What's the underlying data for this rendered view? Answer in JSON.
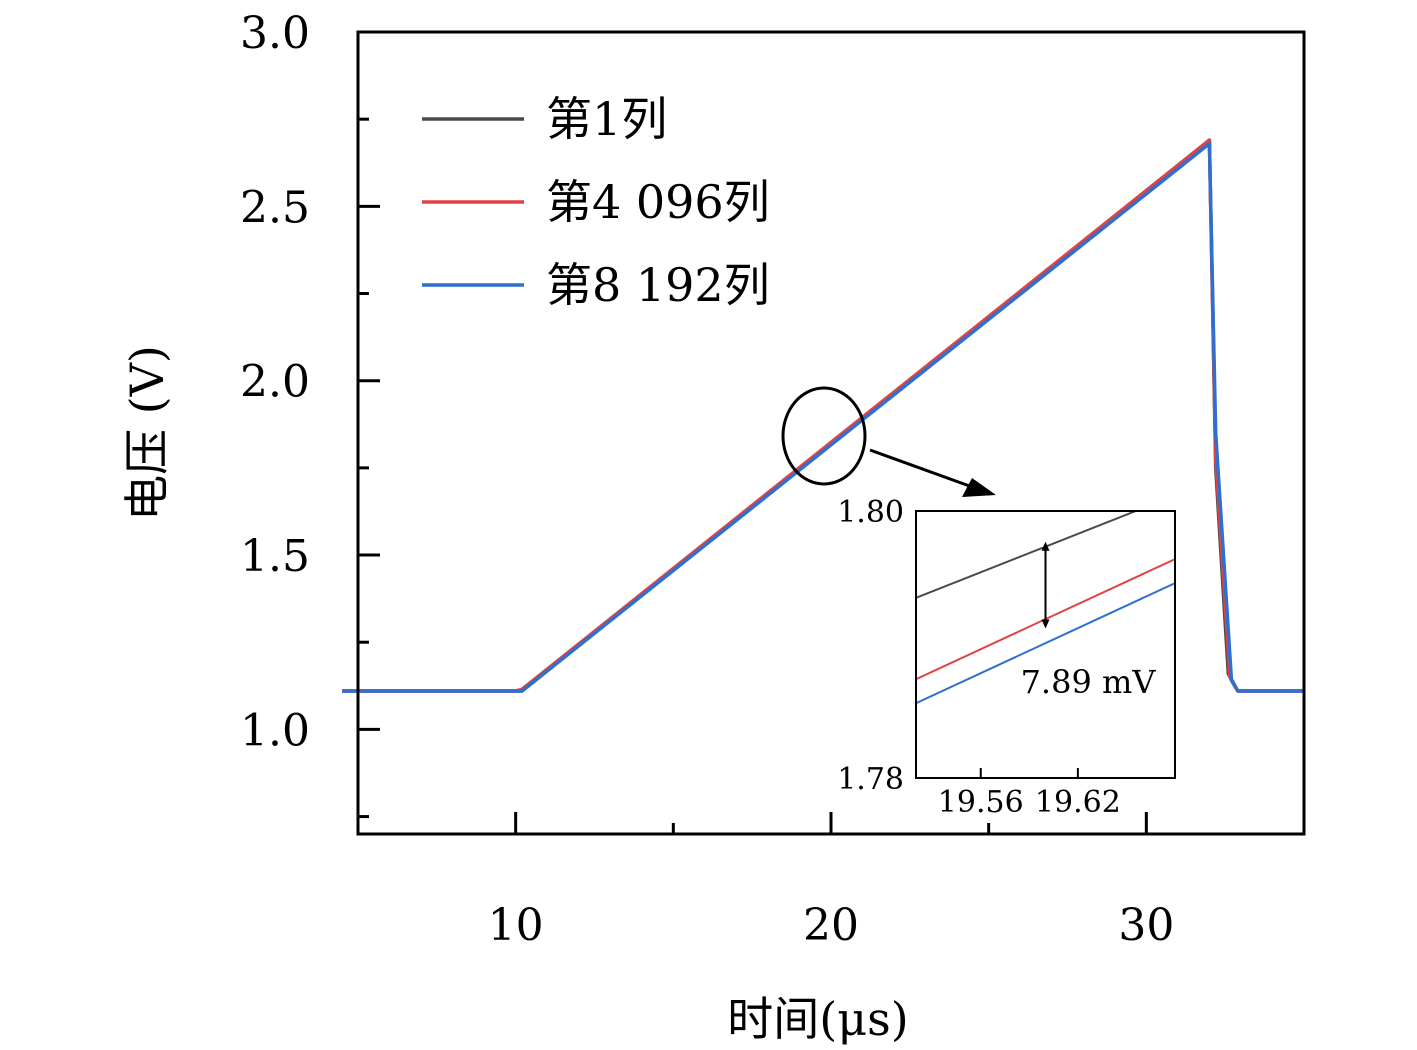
{
  "chart_data": {
    "type": "line",
    "xlabel": "时间(μs)",
    "ylabel": "电压 (V)",
    "xlim": [
      5,
      35
    ],
    "ylim": [
      0.7,
      3.0
    ],
    "xticks": [
      10,
      20,
      30
    ],
    "xticks_minor": [
      15,
      25
    ],
    "yticks": [
      1.0,
      1.5,
      2.0,
      2.5,
      3.0
    ],
    "xtick_labels": [
      "10",
      "20",
      "30"
    ],
    "ytick_labels": [
      "1.0",
      "1.5",
      "2.0",
      "2.5",
      "3.0"
    ],
    "legend_position": "top-left",
    "series": [
      {
        "name": "第1列",
        "color": "#4a4a4a",
        "x": [
          4.5,
          10.0,
          10.2,
          32.0,
          32.2,
          32.6,
          32.9,
          35.0
        ],
        "y": [
          1.11,
          1.11,
          1.11,
          2.69,
          1.75,
          1.16,
          1.11,
          1.11
        ]
      },
      {
        "name": "第4 096列",
        "color": "#e04343",
        "x": [
          4.5,
          10.0,
          10.2,
          32.0,
          32.2,
          32.65,
          32.9,
          35.0
        ],
        "y": [
          1.11,
          1.11,
          1.115,
          2.69,
          1.78,
          1.15,
          1.11,
          1.11
        ]
      },
      {
        "name": "第8 192列",
        "color": "#2f6fd0",
        "x": [
          4.5,
          10.0,
          10.2,
          32.0,
          32.2,
          32.7,
          32.9,
          35.0
        ],
        "y": [
          1.11,
          1.11,
          1.11,
          2.68,
          1.85,
          1.14,
          1.11,
          1.11
        ]
      }
    ],
    "inset": {
      "xlim": [
        19.52,
        19.68
      ],
      "ylim": [
        1.78,
        1.8
      ],
      "xticks": [
        19.56,
        19.62
      ],
      "xtick_labels": [
        "19.56",
        "19.62"
      ],
      "yticks": [
        1.78,
        1.8
      ],
      "ytick_labels": [
        "1.78",
        "1.80"
      ],
      "series": [
        {
          "name": "第1列",
          "color": "#4a4a4a",
          "x": [
            19.52,
            19.66
          ],
          "y": [
            1.7935,
            1.8002
          ]
        },
        {
          "name": "第4 096列",
          "color": "#e04343",
          "x": [
            19.52,
            19.68
          ],
          "y": [
            1.7874,
            1.7964
          ]
        },
        {
          "name": "第8 192列",
          "color": "#2f6fd0",
          "x": [
            19.52,
            19.68
          ],
          "y": [
            1.7856,
            1.7946
          ]
        }
      ],
      "annotation": "7.89 mV",
      "arrow_x": 19.6,
      "arrow_y": [
        1.7977,
        1.7912
      ]
    }
  }
}
